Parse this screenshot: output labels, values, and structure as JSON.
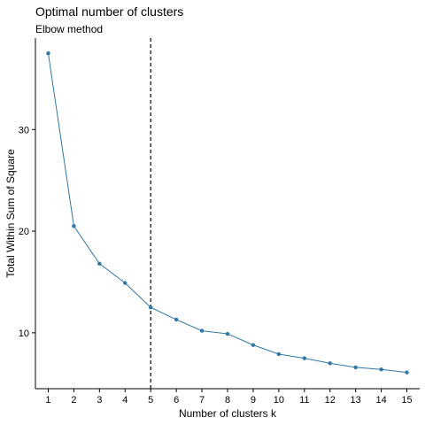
{
  "chart_data": {
    "type": "line",
    "title": "Optimal number of clusters",
    "subtitle": "Elbow method",
    "xlabel": "Number of clusters k",
    "ylabel": "Total Within Sum of Square",
    "x": [
      1,
      2,
      3,
      4,
      5,
      6,
      7,
      8,
      9,
      10,
      11,
      12,
      13,
      14,
      15
    ],
    "series": [
      {
        "values": [
          37.5,
          20.5,
          16.8,
          14.9,
          12.5,
          11.3,
          10.2,
          9.9,
          8.8,
          7.9,
          7.5,
          7.0,
          6.6,
          6.4,
          6.1
        ]
      }
    ],
    "xlim": [
      0.5,
      15.5
    ],
    "ylim": [
      4.5,
      39
    ],
    "xticks": [
      "1",
      "2",
      "3",
      "4",
      "5",
      "6",
      "7",
      "8",
      "9",
      "10",
      "11",
      "12",
      "13",
      "14",
      "15"
    ],
    "yticks": [
      10,
      20,
      30
    ],
    "vline_x": 5,
    "grid": false,
    "line_color": "#2E78A8"
  }
}
